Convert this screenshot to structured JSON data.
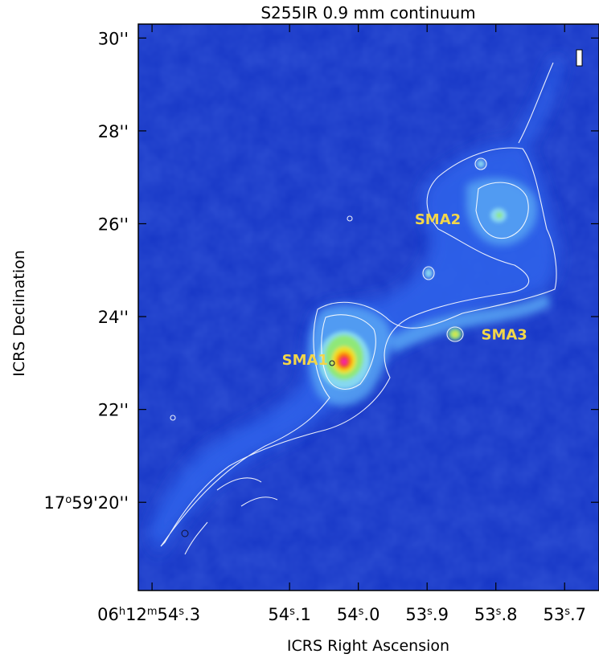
{
  "chart_data": {
    "type": "heatmap",
    "title": "S255IR 0.9 mm continuum",
    "xlabel": "ICRS Right Ascension",
    "ylabel": "ICRS Declination",
    "x_ticks": [
      {
        "value": 54.3,
        "label": [
          "06",
          "h",
          "12",
          "m",
          "54",
          "s",
          ".3"
        ]
      },
      {
        "value": 54.1,
        "label": [
          "54",
          "s",
          ".1"
        ]
      },
      {
        "value": 54.0,
        "label": [
          "54",
          "s",
          ".0"
        ]
      },
      {
        "value": 53.9,
        "label": [
          "53",
          "s",
          ".9"
        ]
      },
      {
        "value": 53.8,
        "label": [
          "53",
          "s",
          ".8"
        ]
      },
      {
        "value": 53.7,
        "label": [
          "53",
          "s",
          ".7"
        ]
      }
    ],
    "y_ticks": [
      {
        "value": 30,
        "label": [
          "30''"
        ]
      },
      {
        "value": 28,
        "label": [
          "28''"
        ]
      },
      {
        "value": 26,
        "label": [
          "26''"
        ]
      },
      {
        "value": 24,
        "label": [
          "24''"
        ]
      },
      {
        "value": 22,
        "label": [
          "22''"
        ]
      },
      {
        "value": 20,
        "label": [
          "17",
          "o",
          "59'20''"
        ]
      }
    ],
    "xlim": [
      54.32,
      53.65
    ],
    "ylim": [
      18.1,
      30.3
    ],
    "sources": [
      {
        "name": "SMA1",
        "ra": 54.0,
        "dec": 23.1,
        "peak": 1.0
      },
      {
        "name": "SMA2",
        "ra": 53.78,
        "dec": 26.2,
        "peak": 0.55
      },
      {
        "name": "SMA3",
        "ra": 53.84,
        "dec": 23.65,
        "peak": 0.6
      }
    ],
    "colormap": [
      "#0a1d9c",
      "#1a3ed8",
      "#2f6cf0",
      "#58a8f6",
      "#8ad8f2",
      "#8fe878",
      "#f0e020",
      "#ff8010",
      "#e8101c",
      "#ff30c0"
    ],
    "contour_color": "#ffffff",
    "label_color": "#f2d64a",
    "beam_label": "I"
  }
}
